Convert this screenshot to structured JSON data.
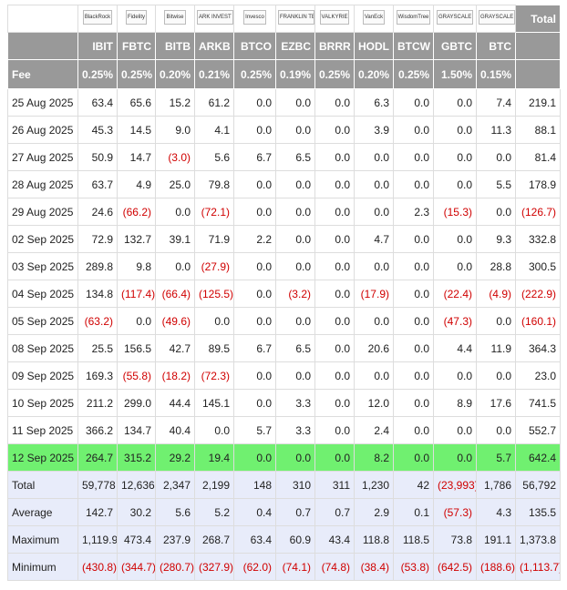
{
  "header": {
    "logos": [
      "BlackRock",
      "Fidelity",
      "Bitwise",
      "ARK INVEST",
      "Invesco",
      "FRANKLIN TEMPLETON",
      "VALKYRIE",
      "VanEck",
      "WisdomTree",
      "GRAYSCALE",
      "GRAYSCALE"
    ],
    "total": "Total",
    "tickers": [
      "IBIT",
      "FBTC",
      "BITB",
      "ARKB",
      "BTCO",
      "EZBC",
      "BRRR",
      "HODL",
      "BTCW",
      "GBTC",
      "BTC"
    ],
    "fee_label": "Fee",
    "fees": [
      "0.25%",
      "0.25%",
      "0.20%",
      "0.21%",
      "0.25%",
      "0.19%",
      "0.25%",
      "0.20%",
      "0.25%",
      "1.50%",
      "0.15%"
    ]
  },
  "table": {
    "rows": [
      [
        "25 Aug 2025",
        "63.4",
        "65.6",
        "15.2",
        "61.2",
        "0.0",
        "0.0",
        "0.0",
        "6.3",
        "0.0",
        "0.0",
        "7.4",
        "219.1"
      ],
      [
        "26 Aug 2025",
        "45.3",
        "14.5",
        "9.0",
        "4.1",
        "0.0",
        "0.0",
        "0.0",
        "3.9",
        "0.0",
        "0.0",
        "11.3",
        "88.1"
      ],
      [
        "27 Aug 2025",
        "50.9",
        "14.7",
        "(3.0)",
        "5.6",
        "6.7",
        "6.5",
        "0.0",
        "0.0",
        "0.0",
        "0.0",
        "0.0",
        "81.4"
      ],
      [
        "28 Aug 2025",
        "63.7",
        "4.9",
        "25.0",
        "79.8",
        "0.0",
        "0.0",
        "0.0",
        "0.0",
        "0.0",
        "0.0",
        "5.5",
        "178.9"
      ],
      [
        "29 Aug 2025",
        "24.6",
        "(66.2)",
        "0.0",
        "(72.1)",
        "0.0",
        "0.0",
        "0.0",
        "0.0",
        "2.3",
        "(15.3)",
        "0.0",
        "(126.7)"
      ],
      [
        "02 Sep 2025",
        "72.9",
        "132.7",
        "39.1",
        "71.9",
        "2.2",
        "0.0",
        "0.0",
        "4.7",
        "0.0",
        "0.0",
        "9.3",
        "332.8"
      ],
      [
        "03 Sep 2025",
        "289.8",
        "9.8",
        "0.0",
        "(27.9)",
        "0.0",
        "0.0",
        "0.0",
        "0.0",
        "0.0",
        "0.0",
        "28.8",
        "300.5"
      ],
      [
        "04 Sep 2025",
        "134.8",
        "(117.4)",
        "(66.4)",
        "(125.5)",
        "0.0",
        "(3.2)",
        "0.0",
        "(17.9)",
        "0.0",
        "(22.4)",
        "(4.9)",
        "(222.9)"
      ],
      [
        "05 Sep 2025",
        "(63.2)",
        "0.0",
        "(49.6)",
        "0.0",
        "0.0",
        "0.0",
        "0.0",
        "0.0",
        "0.0",
        "(47.3)",
        "0.0",
        "(160.1)"
      ],
      [
        "08 Sep 2025",
        "25.5",
        "156.5",
        "42.7",
        "89.5",
        "6.7",
        "6.5",
        "0.0",
        "20.6",
        "0.0",
        "4.4",
        "11.9",
        "364.3"
      ],
      [
        "09 Sep 2025",
        "169.3",
        "(55.8)",
        "(18.2)",
        "(72.3)",
        "0.0",
        "0.0",
        "0.0",
        "0.0",
        "0.0",
        "0.0",
        "0.0",
        "23.0"
      ],
      [
        "10 Sep 2025",
        "211.2",
        "299.0",
        "44.4",
        "145.1",
        "0.0",
        "3.3",
        "0.0",
        "12.0",
        "0.0",
        "8.9",
        "17.6",
        "741.5"
      ],
      [
        "11 Sep 2025",
        "366.2",
        "134.7",
        "40.4",
        "0.0",
        "5.7",
        "3.3",
        "0.0",
        "2.4",
        "0.0",
        "0.0",
        "0.0",
        "552.7"
      ],
      [
        "12 Sep 2025",
        "264.7",
        "315.2",
        "29.2",
        "19.4",
        "0.0",
        "0.0",
        "0.0",
        "8.2",
        "0.0",
        "0.0",
        "5.7",
        "642.4"
      ]
    ],
    "summary": [
      [
        "Total",
        "59,778",
        "12,636",
        "2,347",
        "2,199",
        "148",
        "310",
        "311",
        "1,230",
        "42",
        "(23,993)",
        "1,786",
        "56,792"
      ],
      [
        "Average",
        "142.7",
        "30.2",
        "5.6",
        "5.2",
        "0.4",
        "0.7",
        "0.7",
        "2.9",
        "0.1",
        "(57.3)",
        "4.3",
        "135.5"
      ],
      [
        "Maximum",
        "1,119.9",
        "473.4",
        "237.9",
        "268.7",
        "63.4",
        "60.9",
        "43.4",
        "118.8",
        "118.5",
        "73.8",
        "191.1",
        "1,373.8"
      ],
      [
        "Minimum",
        "(430.8)",
        "(344.7)",
        "(280.7)",
        "(327.9)",
        "(62.0)",
        "(74.1)",
        "(74.8)",
        "(38.4)",
        "(53.8)",
        "(642.5)",
        "(188.6)",
        "(1,113.7)"
      ]
    ]
  }
}
